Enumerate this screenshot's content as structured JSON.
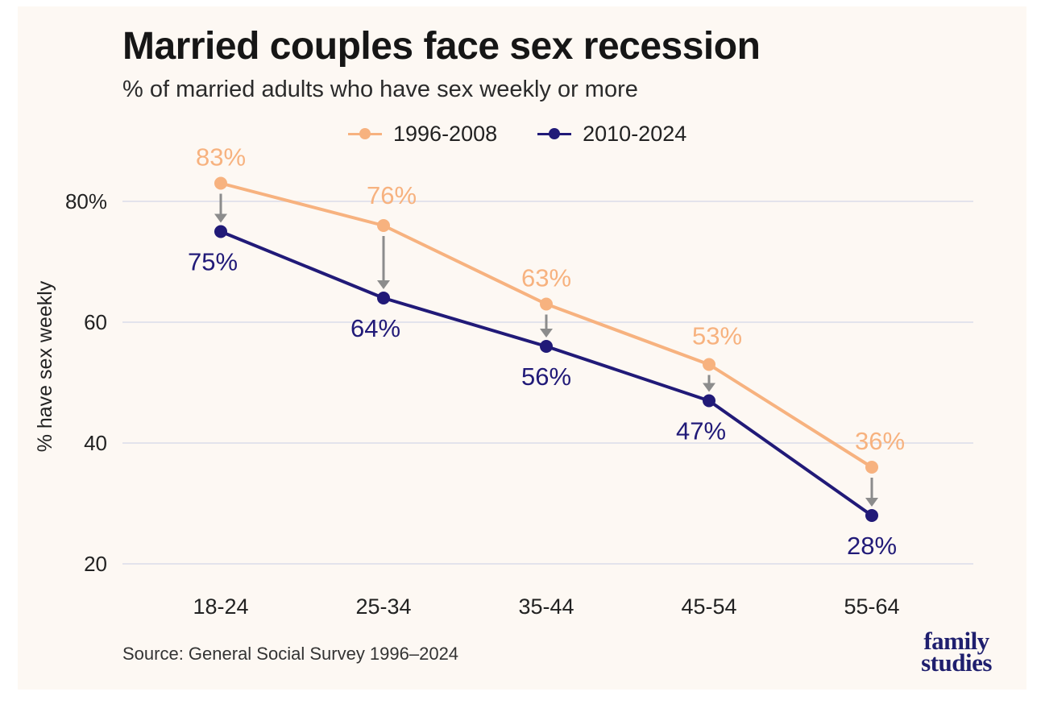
{
  "header": {
    "title": "Married couples face sex recession",
    "subtitle": "% of married adults who have sex weekly or more"
  },
  "footer": {
    "source": "Source: General Social Survey 1996–2024",
    "logo_line1": "family",
    "logo_line2": "studies"
  },
  "colors": {
    "series_early": "#f7b27f",
    "series_late": "#211a78",
    "arrow": "#8c8c8c",
    "grid": "#e3e3ec"
  },
  "chart_data": {
    "type": "line",
    "title": "Married couples face sex recession",
    "subtitle": "% of married adults who have sex weekly or more",
    "xlabel": "",
    "ylabel": "% have sex weekly",
    "categories": [
      "18-24",
      "25-34",
      "35-44",
      "45-54",
      "55-64"
    ],
    "ylim": [
      20,
      86
    ],
    "yticks": [
      20,
      40,
      60,
      80
    ],
    "ytick_labels": [
      "20",
      "40",
      "60",
      "80%"
    ],
    "grid": true,
    "legend_position": "top-center",
    "series": [
      {
        "name": "1996-2008",
        "values": [
          83,
          76,
          63,
          53,
          36
        ],
        "labels": [
          "83%",
          "76%",
          "63%",
          "53%",
          "36%"
        ],
        "color": "#f7b27f"
      },
      {
        "name": "2010-2024",
        "values": [
          75,
          64,
          56,
          47,
          28
        ],
        "labels": [
          "75%",
          "64%",
          "56%",
          "47%",
          "28%"
        ],
        "color": "#211a78"
      }
    ],
    "annotations": "Grey arrows point down from each 1996-2008 value to the 2010-2024 value"
  }
}
